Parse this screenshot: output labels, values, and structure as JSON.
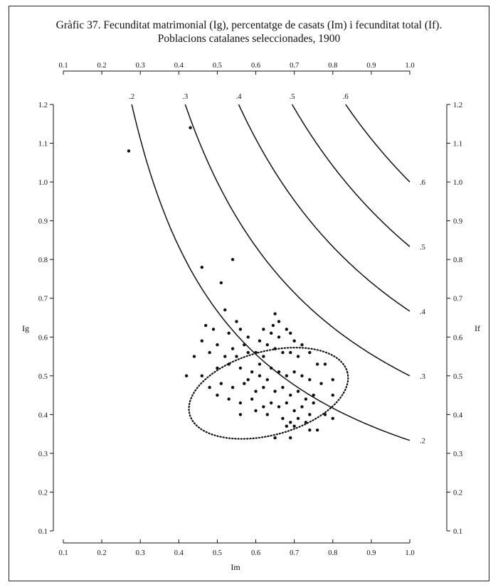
{
  "chart_data": {
    "type": "scatter",
    "title": "Gràfic 37. Fecunditat matrimonial (Ig), percentatge de casats (Im) i fecunditat total (If).",
    "subtitle": "Poblacions catalanes seleccionades, 1900",
    "xlabel": "Im",
    "ylabel": "Ig",
    "y2label": "If",
    "xlim": [
      0.1,
      1.0
    ],
    "ylim": [
      0.1,
      1.2
    ],
    "y2lim": [
      0.1,
      1.2
    ],
    "grid": false,
    "legend": "none",
    "x_ticks": [
      "0.1",
      "0.2",
      "0.3",
      "0.4",
      "0.5",
      "0.6",
      "0.7",
      "0.8",
      "0.9",
      "1.0"
    ],
    "y_ticks": [
      "0.1",
      "0.2",
      "0.3",
      "0.4",
      "0.5",
      "0.6",
      "0.7",
      "0.8",
      "0.9",
      "1.0",
      "1.1",
      "1.2"
    ],
    "iso_if_curves": [
      {
        "value": 0.2,
        "top_label": ".2",
        "right_label": ".2"
      },
      {
        "value": 0.3,
        "top_label": ".3",
        "right_label": ".3"
      },
      {
        "value": 0.4,
        "top_label": ".4",
        "right_label": ".4"
      },
      {
        "value": 0.5,
        "top_label": ".5",
        "right_label": ".5"
      },
      {
        "value": 0.6,
        "top_label": ".6",
        "right_label": ".6"
      }
    ],
    "ellipse": {
      "center": [
        0.633,
        0.455
      ],
      "rx": 0.212,
      "ry": 0.108,
      "rotation_deg": -15
    },
    "points": [
      [
        0.27,
        1.08
      ],
      [
        0.43,
        1.14
      ],
      [
        0.46,
        0.78
      ],
      [
        0.51,
        0.74
      ],
      [
        0.54,
        0.8
      ],
      [
        0.52,
        0.67
      ],
      [
        0.47,
        0.63
      ],
      [
        0.49,
        0.62
      ],
      [
        0.55,
        0.64
      ],
      [
        0.65,
        0.66
      ],
      [
        0.66,
        0.64
      ],
      [
        0.645,
        0.63
      ],
      [
        0.68,
        0.62
      ],
      [
        0.69,
        0.61
      ],
      [
        0.53,
        0.61
      ],
      [
        0.56,
        0.62
      ],
      [
        0.58,
        0.6
      ],
      [
        0.62,
        0.62
      ],
      [
        0.64,
        0.61
      ],
      [
        0.66,
        0.6
      ],
      [
        0.7,
        0.59
      ],
      [
        0.72,
        0.58
      ],
      [
        0.46,
        0.59
      ],
      [
        0.5,
        0.58
      ],
      [
        0.54,
        0.57
      ],
      [
        0.57,
        0.58
      ],
      [
        0.61,
        0.59
      ],
      [
        0.63,
        0.58
      ],
      [
        0.65,
        0.57
      ],
      [
        0.67,
        0.56
      ],
      [
        0.44,
        0.55
      ],
      [
        0.48,
        0.56
      ],
      [
        0.52,
        0.55
      ],
      [
        0.55,
        0.55
      ],
      [
        0.58,
        0.56
      ],
      [
        0.6,
        0.56
      ],
      [
        0.62,
        0.55
      ],
      [
        0.69,
        0.56
      ],
      [
        0.71,
        0.55
      ],
      [
        0.74,
        0.56
      ],
      [
        0.76,
        0.53
      ],
      [
        0.78,
        0.53
      ],
      [
        0.42,
        0.5
      ],
      [
        0.46,
        0.5
      ],
      [
        0.5,
        0.52
      ],
      [
        0.53,
        0.53
      ],
      [
        0.56,
        0.52
      ],
      [
        0.59,
        0.51
      ],
      [
        0.61,
        0.5
      ],
      [
        0.64,
        0.52
      ],
      [
        0.66,
        0.51
      ],
      [
        0.68,
        0.5
      ],
      [
        0.7,
        0.51
      ],
      [
        0.72,
        0.5
      ],
      [
        0.74,
        0.49
      ],
      [
        0.77,
        0.48
      ],
      [
        0.8,
        0.49
      ],
      [
        0.48,
        0.47
      ],
      [
        0.51,
        0.48
      ],
      [
        0.54,
        0.47
      ],
      [
        0.57,
        0.48
      ],
      [
        0.6,
        0.46
      ],
      [
        0.62,
        0.47
      ],
      [
        0.65,
        0.46
      ],
      [
        0.67,
        0.47
      ],
      [
        0.69,
        0.45
      ],
      [
        0.71,
        0.46
      ],
      [
        0.73,
        0.44
      ],
      [
        0.75,
        0.45
      ],
      [
        0.8,
        0.45
      ],
      [
        0.5,
        0.45
      ],
      [
        0.53,
        0.44
      ],
      [
        0.56,
        0.43
      ],
      [
        0.59,
        0.44
      ],
      [
        0.62,
        0.42
      ],
      [
        0.64,
        0.43
      ],
      [
        0.66,
        0.42
      ],
      [
        0.68,
        0.43
      ],
      [
        0.7,
        0.41
      ],
      [
        0.72,
        0.42
      ],
      [
        0.74,
        0.4
      ],
      [
        0.78,
        0.4
      ],
      [
        0.56,
        0.4
      ],
      [
        0.6,
        0.41
      ],
      [
        0.63,
        0.4
      ],
      [
        0.67,
        0.39
      ],
      [
        0.69,
        0.38
      ],
      [
        0.71,
        0.39
      ],
      [
        0.73,
        0.38
      ],
      [
        0.8,
        0.39
      ],
      [
        0.68,
        0.37
      ],
      [
        0.7,
        0.37
      ],
      [
        0.74,
        0.36
      ],
      [
        0.76,
        0.36
      ],
      [
        0.65,
        0.34
      ],
      [
        0.69,
        0.34
      ],
      [
        0.58,
        0.49
      ],
      [
        0.63,
        0.49
      ],
      [
        0.75,
        0.43
      ],
      [
        0.61,
        0.53
      ]
    ]
  }
}
